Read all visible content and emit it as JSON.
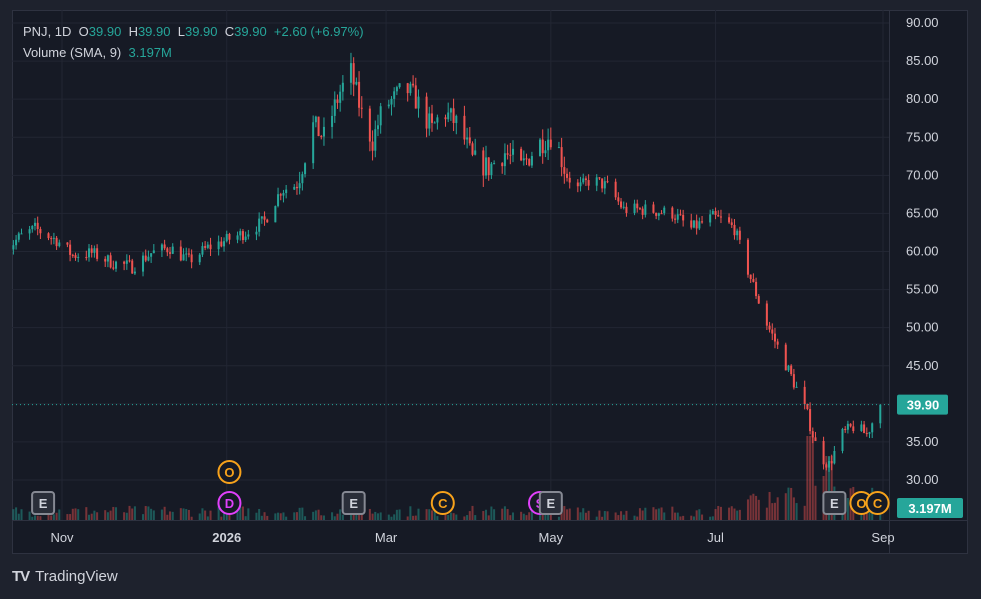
{
  "legend": {
    "symbol": "PNJ",
    "interval": "1D",
    "open_label": "O",
    "open": "39.90",
    "high_label": "H",
    "high": "39.90",
    "low_label": "L",
    "low": "39.90",
    "close_label": "C",
    "close": "39.90",
    "change": "+2.60 (+6.97%)",
    "volume_label": "Volume (SMA, 9)",
    "volume_value": "3.197M"
  },
  "branding": {
    "logo": "TV",
    "name": "TradingView"
  },
  "colors": {
    "up": "#26a69a",
    "down": "#ef5350",
    "background": "#161a25",
    "grid": "#222633",
    "text": "#d1d4dc",
    "event_orange": "#f7a21b",
    "event_pink": "#e040fb"
  },
  "chart_data": {
    "type": "candlestick",
    "symbol": "PNJ",
    "interval": "1D",
    "y_ticks": [
      "30.00",
      "35.00",
      "40.00",
      "45.00",
      "50.00",
      "55.00",
      "60.00",
      "65.00",
      "70.00",
      "75.00",
      "80.00",
      "85.00",
      "90.00"
    ],
    "ylim": [
      27.5,
      90.5
    ],
    "x_ticks": [
      {
        "label": "Nov",
        "date": "2025-11-01"
      },
      {
        "label": "2026",
        "date": "2026-01-01"
      },
      {
        "label": "Mar",
        "date": "2026-03-01"
      },
      {
        "label": "May",
        "date": "2026-05-01"
      },
      {
        "label": "Jul",
        "date": "2026-07-01"
      },
      {
        "label": "Sep",
        "date": "2026-09-01"
      }
    ],
    "last_price": "39.90",
    "volume_last": "3.197M",
    "anchors": [
      [
        "2025-10-10",
        59.8
      ],
      [
        "2025-10-16",
        61.8
      ],
      [
        "2025-10-22",
        63.0
      ],
      [
        "2025-10-30",
        61.5
      ],
      [
        "2025-11-05",
        59.5
      ],
      [
        "2025-11-12",
        59.8
      ],
      [
        "2025-11-20",
        58.5
      ],
      [
        "2025-11-27",
        58.0
      ],
      [
        "2025-12-04",
        59.8
      ],
      [
        "2025-12-11",
        60.5
      ],
      [
        "2025-12-18",
        58.8
      ],
      [
        "2025-12-25",
        60.5
      ],
      [
        "2026-01-01",
        61.5
      ],
      [
        "2026-01-08",
        62.5
      ],
      [
        "2026-01-15",
        64.0
      ],
      [
        "2026-01-21",
        68.0
      ],
      [
        "2026-01-27",
        68.8
      ],
      [
        "2026-02-02",
        76.5
      ],
      [
        "2026-02-06",
        75.0
      ],
      [
        "2026-02-12",
        81.0
      ],
      [
        "2026-02-16",
        83.5
      ],
      [
        "2026-02-20",
        78.0
      ],
      [
        "2026-02-24",
        74.5
      ],
      [
        "2026-02-28",
        79.0
      ],
      [
        "2026-03-04",
        80.0
      ],
      [
        "2026-03-08",
        81.5
      ],
      [
        "2026-03-12",
        80.0
      ],
      [
        "2026-03-18",
        76.0
      ],
      [
        "2026-03-22",
        78.5
      ],
      [
        "2026-03-28",
        76.5
      ],
      [
        "2026-04-02",
        72.0
      ],
      [
        "2026-04-08",
        71.0
      ],
      [
        "2026-04-14",
        73.0
      ],
      [
        "2026-04-20",
        71.0
      ],
      [
        "2026-04-26",
        74.0
      ],
      [
        "2026-05-02",
        75.5
      ],
      [
        "2026-05-06",
        71.0
      ],
      [
        "2026-05-10",
        68.0
      ],
      [
        "2026-05-16",
        69.5
      ],
      [
        "2026-05-22",
        68.5
      ],
      [
        "2026-05-28",
        65.5
      ],
      [
        "2026-06-05",
        65.5
      ],
      [
        "2026-06-15",
        65.0
      ],
      [
        "2026-06-22",
        63.0
      ],
      [
        "2026-06-30",
        64.5
      ],
      [
        "2026-07-04",
        64.0
      ],
      [
        "2026-07-08",
        63.0
      ],
      [
        "2026-07-12",
        58.5
      ],
      [
        "2026-07-16",
        54.5
      ],
      [
        "2026-07-20",
        50.5
      ],
      [
        "2026-07-26",
        46.0
      ],
      [
        "2026-07-31",
        42.0
      ],
      [
        "2026-08-04",
        38.5
      ],
      [
        "2026-08-08",
        33.5
      ],
      [
        "2026-08-12",
        32.0
      ],
      [
        "2026-08-17",
        36.0
      ],
      [
        "2026-08-21",
        37.0
      ],
      [
        "2026-08-26",
        36.0
      ],
      [
        "2026-08-31",
        39.9
      ]
    ],
    "volume_spikes": [
      [
        "2026-08-05",
        10.5
      ],
      [
        "2026-08-09",
        5.5
      ],
      [
        "2026-08-12",
        8.0
      ]
    ],
    "events": [
      {
        "letter": "E",
        "date": "2025-10-25",
        "row": 1,
        "style": "earnings"
      },
      {
        "letter": "D",
        "date": "2026-01-02",
        "row": 1,
        "style": "dividend"
      },
      {
        "letter": "O",
        "date": "2026-01-02",
        "row": 2,
        "style": "other"
      },
      {
        "letter": "E",
        "date": "2026-02-17",
        "row": 1,
        "style": "earnings"
      },
      {
        "letter": "C",
        "date": "2026-03-22",
        "row": 1,
        "style": "other"
      },
      {
        "letter": "S",
        "date": "2026-04-27",
        "row": 1,
        "style": "dividend"
      },
      {
        "letter": "E",
        "date": "2026-05-01",
        "row": 1,
        "style": "earnings"
      },
      {
        "letter": "E",
        "date": "2026-08-14",
        "row": 1,
        "style": "earnings"
      },
      {
        "letter": "O",
        "date": "2026-08-24",
        "row": 1,
        "style": "other"
      },
      {
        "letter": "C",
        "date": "2026-08-30",
        "row": 1,
        "style": "other"
      }
    ]
  }
}
